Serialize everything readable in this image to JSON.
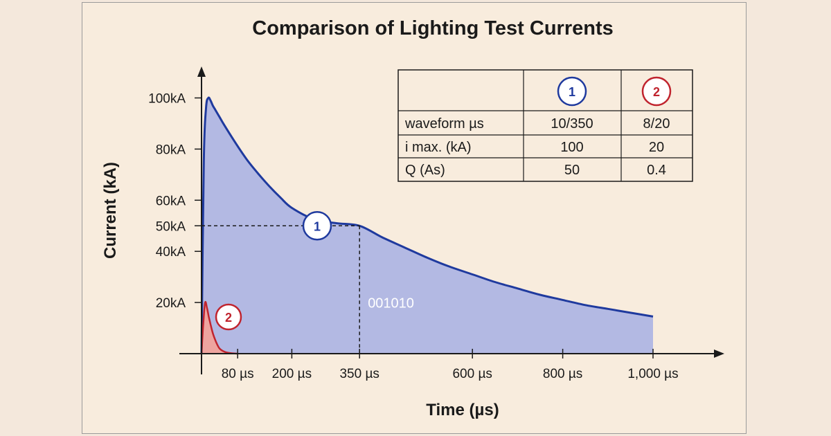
{
  "colors": {
    "background": "#f8ecdd",
    "series1_line": "#1f3a9e",
    "series1_fill": "#b3b9e3",
    "series2_line": "#c0242e",
    "series2_fill": "#eea49f",
    "axis": "#1a1a1a"
  },
  "chart_data": {
    "type": "area",
    "title": "Comparison of Lighting Test Currents",
    "xlabel": "Time (µs)",
    "ylabel": "Current (kA)",
    "x_ticks": [
      {
        "value": 80,
        "label": "80 µs"
      },
      {
        "value": 200,
        "label": "200 µs"
      },
      {
        "value": 350,
        "label": "350 µs"
      },
      {
        "value": 600,
        "label": "600 µs"
      },
      {
        "value": 800,
        "label": "800 µs"
      },
      {
        "value": 1000,
        "label": "1,000 µs"
      }
    ],
    "y_ticks": [
      {
        "value": 20,
        "label": "20kA"
      },
      {
        "value": 40,
        "label": "40kA"
      },
      {
        "value": 50,
        "label": "50kA"
      },
      {
        "value": 60,
        "label": "60kA"
      },
      {
        "value": 80,
        "label": "80kA"
      },
      {
        "value": 100,
        "label": "100kA"
      }
    ],
    "xlim": [
      0,
      1160
    ],
    "ylim": [
      0,
      110
    ],
    "grid": false,
    "series": [
      {
        "marker": "1",
        "x": [
          0,
          5,
          10,
          15,
          20,
          25,
          30,
          40,
          50,
          75,
          100,
          125,
          150,
          175,
          200,
          250,
          300,
          350,
          400,
          450,
          500,
          550,
          600,
          650,
          700,
          750,
          800,
          850,
          900,
          950,
          1000
        ],
        "values": [
          0,
          75,
          96,
          100,
          99,
          97,
          95.5,
          92.5,
          89.5,
          82.5,
          76,
          70.5,
          65.5,
          61,
          57,
          52.5,
          51,
          50,
          45.5,
          41.5,
          37.5,
          34,
          31,
          28,
          25.5,
          23,
          21,
          19,
          17.5,
          16,
          14.5
        ]
      },
      {
        "marker": "2",
        "x": [
          0,
          4,
          8,
          12,
          16,
          20,
          25,
          30,
          35,
          40,
          50,
          60,
          70,
          80
        ],
        "values": [
          0,
          12,
          20,
          18,
          14.5,
          11.5,
          8,
          5.5,
          3.5,
          2,
          0.8,
          0.3,
          0.1,
          0
        ]
      }
    ],
    "reference": {
      "x": 350,
      "y": 50
    },
    "annotation": "001010",
    "table": {
      "headers": [
        "",
        "1",
        "2"
      ],
      "rows": [
        [
          "waveform µs",
          "10/350",
          "8/20"
        ],
        [
          "i max. (kA)",
          "100",
          "20"
        ],
        [
          "Q (As)",
          "50",
          "0.4"
        ]
      ]
    }
  }
}
